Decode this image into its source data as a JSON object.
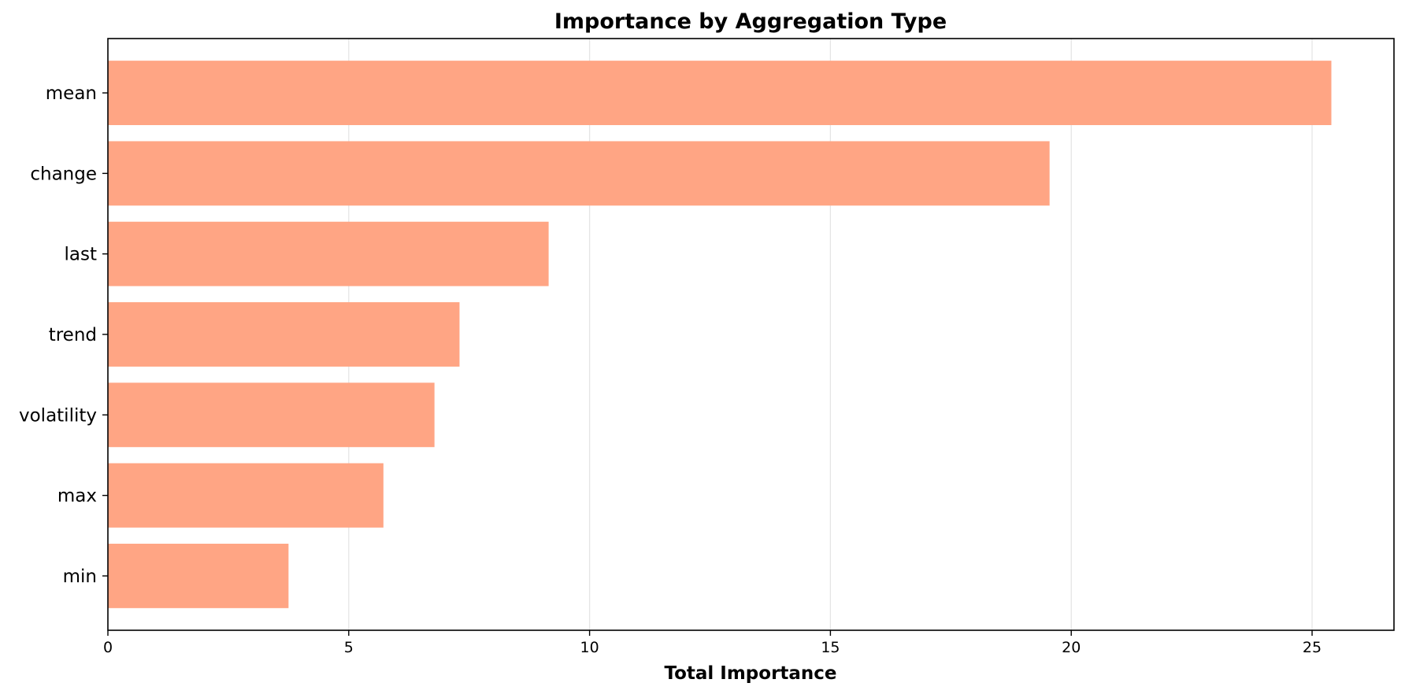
{
  "chart_data": {
    "type": "bar",
    "orientation": "horizontal",
    "title": "Importance by Aggregation Type",
    "xlabel": "Total Importance",
    "ylabel": "",
    "categories": [
      "mean",
      "change",
      "last",
      "trend",
      "volatility",
      "max",
      "min"
    ],
    "values": [
      25.4,
      19.55,
      9.15,
      7.3,
      6.78,
      5.72,
      3.75
    ],
    "xlim": [
      0,
      26.7
    ],
    "xticks": [
      0,
      5,
      10,
      15,
      20,
      25
    ],
    "x_tick_labels": [
      "0",
      "5",
      "10",
      "15",
      "20",
      "25"
    ],
    "grid": "x-axis vertical lines",
    "legend": "none",
    "bar_color": "#ffa584",
    "grid_color": "#e5e5e5"
  }
}
